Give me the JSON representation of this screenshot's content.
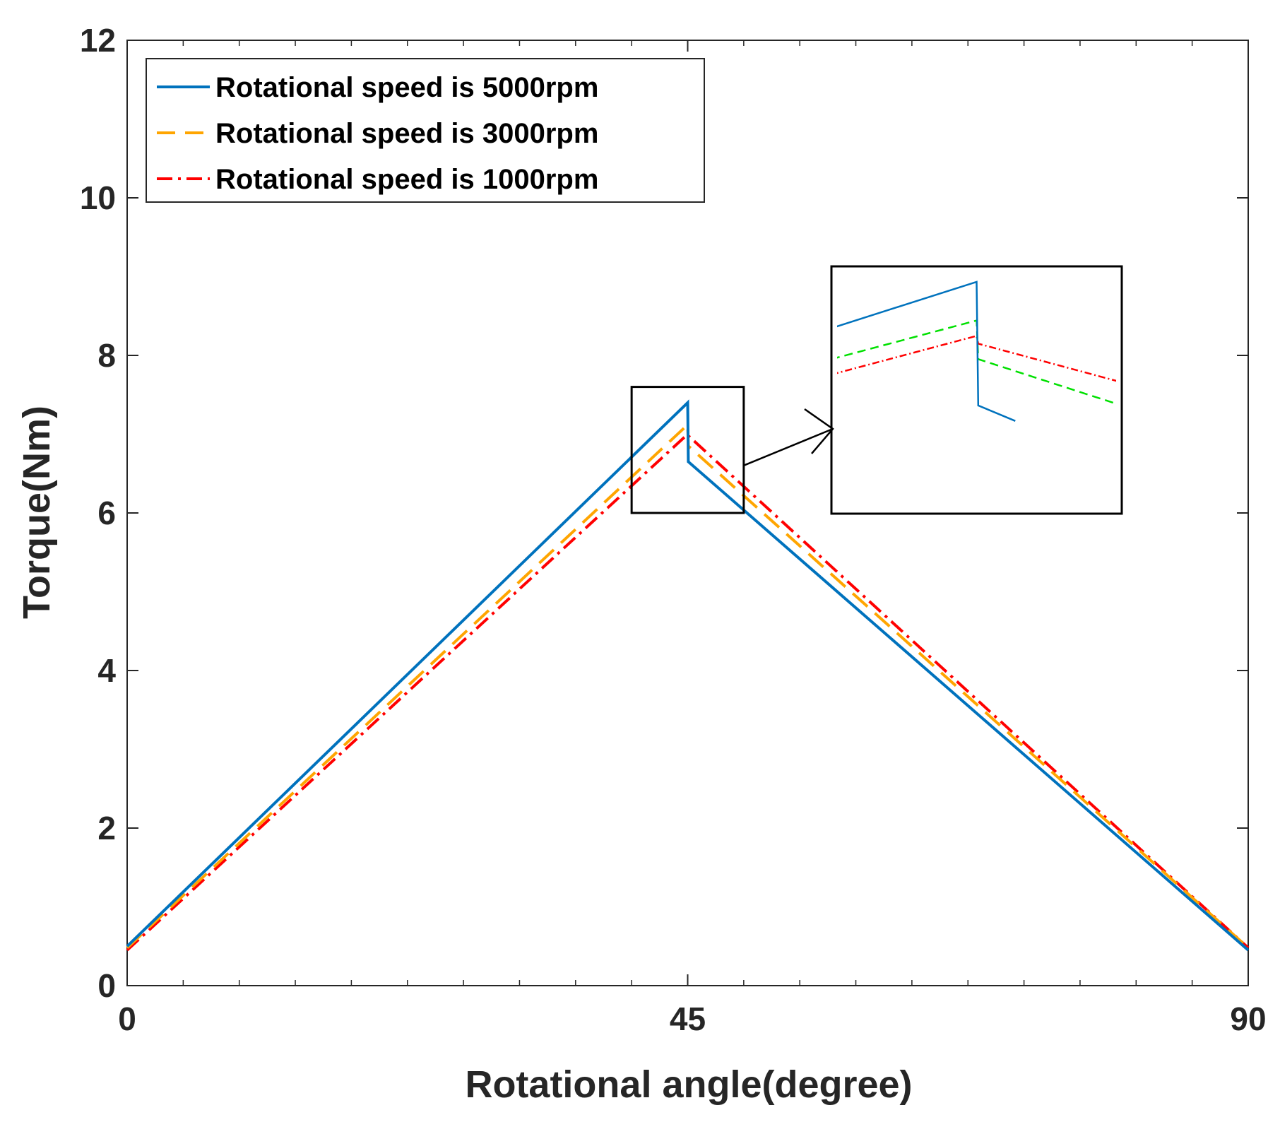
{
  "chart_data": {
    "type": "line",
    "title": "",
    "xlabel": "Rotational angle(degree)",
    "ylabel": "Torque(Nm)",
    "xlim": [
      0,
      90
    ],
    "ylim": [
      0,
      12
    ],
    "xticks": [
      0,
      45,
      90
    ],
    "xtick_labels": [
      "0",
      "45",
      "90"
    ],
    "x_minor_ticks": [
      4.5,
      9,
      13.5,
      18,
      22.5,
      27,
      31.5,
      36,
      40.5,
      49.5,
      54,
      58.5,
      63,
      67.5,
      72,
      76.5,
      81,
      85.5
    ],
    "yticks": [
      0,
      2,
      4,
      6,
      8,
      10,
      12
    ],
    "ytick_labels": [
      "0",
      "2",
      "4",
      "6",
      "8",
      "10",
      "12"
    ],
    "grid": false,
    "legend_position": "top-left",
    "series": [
      {
        "name": "Rotational speed is 5000rpm",
        "color": "#0072BD",
        "style": "solid",
        "x": [
          0,
          45,
          45.05,
          90
        ],
        "y": [
          0.5,
          7.4,
          6.65,
          0.45
        ]
      },
      {
        "name": "Rotational speed is 3000rpm",
        "color": "#FFA500",
        "style": "dashed",
        "x": [
          0,
          45,
          45.05,
          90
        ],
        "y": [
          0.48,
          7.12,
          6.85,
          0.48
        ]
      },
      {
        "name": "Rotational speed is 1000rpm",
        "color": "#FF0000",
        "style": "dashdot",
        "x": [
          0,
          45,
          45.05,
          90
        ],
        "y": [
          0.45,
          7.0,
          6.98,
          0.48
        ]
      }
    ],
    "inset": {
      "description": "zoomed view of the peak region",
      "xlim": [
        40.5,
        49.5
      ],
      "ylim": [
        6.0,
        7.6
      ],
      "series": [
        {
          "name": "Rotational speed is 5000rpm",
          "color": "#0072BD",
          "style": "solid",
          "x": [
            40.5,
            45,
            45.05,
            46.2
          ],
          "y": [
            7.2,
            7.5,
            6.7,
            6.6
          ]
        },
        {
          "name": "Rotational speed is 3000rpm",
          "color": "#00E000",
          "style": "dashed",
          "x": [
            40.5,
            45,
            45.05,
            49.5
          ],
          "y": [
            7.0,
            7.25,
            7.0,
            6.7
          ]
        },
        {
          "name": "Rotational speed is 1000rpm",
          "color": "#FF0000",
          "style": "dashdot",
          "x": [
            40.5,
            45,
            45.05,
            49.5
          ],
          "y": [
            6.9,
            7.15,
            7.1,
            6.85
          ]
        }
      ]
    }
  }
}
